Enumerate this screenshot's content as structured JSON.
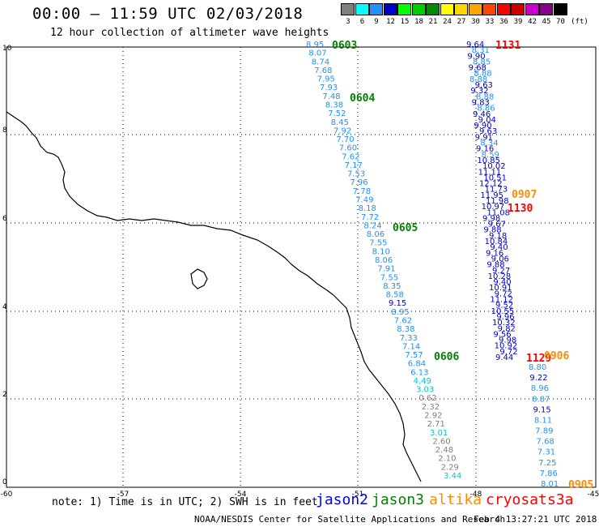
{
  "header": {
    "title": "00:00 – 11:59 UTC 02/03/2018",
    "subtitle": "12 hour collection of altimeter wave heights"
  },
  "scale": {
    "unit": "(ft)",
    "bins": [
      {
        "label": "3",
        "color": "#7f7f7f"
      },
      {
        "label": "6",
        "color": "#00ffff"
      },
      {
        "label": "9",
        "color": "#1e90ff"
      },
      {
        "label": "12",
        "color": "#0000cd"
      },
      {
        "label": "15",
        "color": "#00ff00"
      },
      {
        "label": "18",
        "color": "#00cd00"
      },
      {
        "label": "21",
        "color": "#008b00"
      },
      {
        "label": "24",
        "color": "#ffff00"
      },
      {
        "label": "27",
        "color": "#ffd700"
      },
      {
        "label": "30",
        "color": "#ffa500"
      },
      {
        "label": "33",
        "color": "#ff4500"
      },
      {
        "label": "36",
        "color": "#ff0000"
      },
      {
        "label": "39",
        "color": "#cd0000"
      },
      {
        "label": "42",
        "color": "#cd00cd"
      },
      {
        "label": "45",
        "color": "#8b008b"
      },
      {
        "label": "70",
        "color": "#000000"
      }
    ]
  },
  "axes": {
    "x_ticks": [
      "-60",
      "-57",
      "-54",
      "-51",
      "-48",
      "-45"
    ],
    "y_ticks": [
      "10",
      "8",
      "6",
      "4",
      "2",
      "0"
    ]
  },
  "tracks": [
    {
      "name": "track-0603",
      "time_label": "0603",
      "color": "#008000",
      "values": [
        "8.95",
        "8.07",
        "8.74",
        "7.68",
        "7.95",
        "7.93",
        "7.48",
        "8.38",
        "7.52",
        "8.45",
        "7.92",
        "7.70",
        "7.60",
        "7.62",
        "7.17",
        "7.53",
        "7.96",
        "7.78",
        "7.49",
        "8.18",
        "7.72",
        "8.24",
        "8.06",
        "7.55",
        "8.10",
        "8.06",
        "7.91",
        "7.55",
        "8.35",
        "8.58",
        "9.15",
        "8.95",
        "7.62",
        "8.38",
        "7.33",
        "7.14",
        "7.57",
        "6.84",
        "6.13",
        "4.49",
        "3.03",
        "0.62",
        "2.32",
        "2.92",
        "2.71",
        "3.01",
        "2.60",
        "2.48",
        "2.10",
        "2.29",
        "3.44"
      ]
    },
    {
      "name": "track-1131",
      "time_label": "1131",
      "color": "#ff0000",
      "values": [
        "9.64",
        "8.31",
        "9.90",
        "8.85",
        "9.68",
        "8.88",
        "8.88",
        "9.63",
        "9.32",
        "8.88",
        "9.83",
        "8.86",
        "9.46",
        "9.04",
        "9.90",
        "9.63",
        "9.91",
        "8.34",
        "9.16",
        "8.59",
        "10.85",
        "10.02",
        "11.11",
        "10.51",
        "12.12",
        "11.73",
        "11.95",
        "11.98",
        "10.97",
        "11.08",
        "9.98",
        "9.67",
        "9.88",
        "9.18",
        "10.84",
        "9.40",
        "9.16",
        "9.06",
        "9.88",
        "9.27",
        "10.28",
        "9.40",
        "10.91",
        "9.72",
        "11.12",
        "9.52",
        "10.55",
        "9.96",
        "10.32",
        "9.82",
        "9.56",
        "9.98",
        "10.92",
        "9.72",
        "9.44"
      ]
    },
    {
      "name": "track-0907",
      "time_label": "0907",
      "color": "#ff8c00"
    },
    {
      "name": "track-1130",
      "time_label": "1130",
      "color": "#ff0000"
    },
    {
      "name": "track-1129",
      "time_label": "1129",
      "color": "#ff0000"
    },
    {
      "name": "track-0906",
      "time_label": "0906",
      "color": "#ff8c00",
      "values": [
        "8.80",
        "9.22",
        "8.96",
        "8.87",
        "9.15",
        "8.11",
        "7.89",
        "7.68",
        "7.31",
        "7.25",
        "7.86",
        "8.01"
      ]
    },
    {
      "name": "track-0905",
      "time_label": "0905",
      "color": "#ff8c00"
    },
    {
      "name": "track-0604",
      "time_label": "0604",
      "color": "#008000"
    },
    {
      "name": "track-0605",
      "time_label": "0605",
      "color": "#008000"
    },
    {
      "name": "track-0606",
      "time_label": "0606",
      "color": "#008000"
    }
  ],
  "footer": {
    "note": "note: 1) Time is in UTC; 2) SWH is in feet",
    "satellites": [
      {
        "name": "jason2",
        "color": "#0000ff"
      },
      {
        "name": "jason3",
        "color": "#008000"
      },
      {
        "name": "altika",
        "color": "#ff8c00"
      },
      {
        "name": "cryosat",
        "color": "#ff0000"
      },
      {
        "name": "s3a",
        "color": "#ff0000"
      }
    ],
    "credit": "NOAA/NESDIS Center for Satellite Applications and Research",
    "timestamp": "Feb  4 13:27:21 UTC 2018"
  },
  "value_colors": {
    "gray": "#808080",
    "cyan": "#00c8d8",
    "sky": "#1e90ff",
    "blue": "#0000cd"
  }
}
